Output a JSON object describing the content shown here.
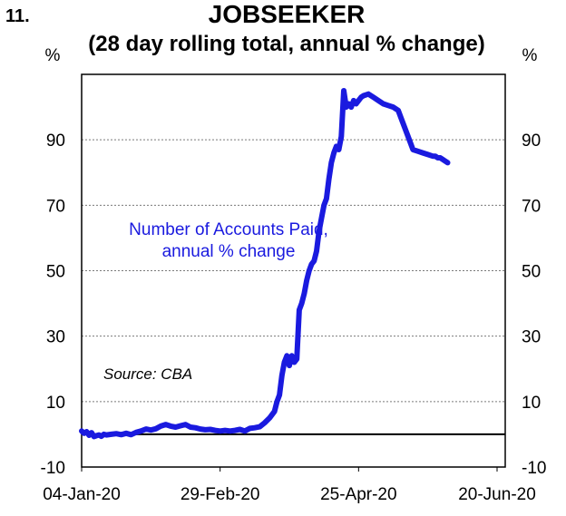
{
  "chart_data": {
    "type": "line",
    "figure_number": "11.",
    "title": "JOBSEEKER",
    "subtitle": "(28 day rolling total, annual % change)",
    "ylabel_left": "%",
    "ylabel_right": "%",
    "xlim": [
      "2020-01-04",
      "2020-06-20"
    ],
    "ylim": [
      -10,
      110
    ],
    "y_ticks": [
      -10,
      10,
      30,
      50,
      70,
      90
    ],
    "y_tick_labels": [
      "-10",
      "10",
      "30",
      "50",
      "70",
      "90"
    ],
    "x_ticks": [
      "2020-01-04",
      "2020-02-29",
      "2020-04-25",
      "2020-06-20"
    ],
    "x_tick_labels": [
      "04-Jan-20",
      "29-Feb-20",
      "25-Apr-20",
      "20-Jun-20"
    ],
    "gridlines": true,
    "zero_line": true,
    "annotation": "Source: CBA",
    "series": [
      {
        "name": "Number of Accounts Paid, annual % change",
        "label_lines": [
          "Number of Accounts Paid,",
          "annual % change"
        ],
        "color": "#1a1adf",
        "x_days": [
          0,
          1,
          2,
          3,
          4,
          5,
          6,
          7,
          8,
          9,
          10,
          12,
          14,
          16,
          18,
          20,
          22,
          24,
          26,
          28,
          30,
          32,
          34,
          36,
          38,
          40,
          42,
          44,
          46,
          48,
          50,
          52,
          54,
          56,
          58,
          60,
          62,
          64,
          66,
          68,
          70,
          72,
          74,
          76,
          78,
          79,
          80,
          81,
          82,
          83,
          84,
          85,
          86,
          87,
          88,
          89,
          90,
          91,
          92,
          93,
          94,
          95,
          96,
          97,
          98,
          99,
          100,
          101,
          102,
          103,
          104,
          105,
          106,
          107,
          108,
          109,
          110,
          111,
          112,
          113,
          114,
          116,
          118,
          120,
          122,
          124,
          126,
          128,
          130,
          132,
          134,
          136,
          138,
          140,
          142,
          143,
          144,
          145,
          146,
          147,
          148
        ],
        "values": [
          1.0,
          0.3,
          0.8,
          -0.3,
          0.5,
          -0.7,
          -0.4,
          -0.2,
          -0.6,
          0.0,
          -0.2,
          0.0,
          0.2,
          -0.1,
          0.3,
          -0.1,
          0.6,
          1.0,
          1.6,
          1.3,
          1.7,
          2.5,
          3.0,
          2.5,
          2.2,
          2.6,
          3.0,
          2.2,
          2.0,
          1.6,
          1.4,
          1.5,
          1.2,
          1.0,
          1.2,
          1.0,
          1.2,
          1.5,
          1.0,
          1.8,
          2.0,
          2.3,
          3.5,
          5.0,
          7.0,
          10.0,
          12.0,
          18.0,
          22.0,
          24.0,
          21.0,
          24.0,
          22.0,
          23.0,
          38.0,
          40.0,
          43.0,
          47.0,
          50.0,
          52.0,
          53.0,
          56.0,
          62.0,
          66.0,
          70.0,
          72.0,
          78.0,
          83.0,
          86.0,
          88.0,
          87.0,
          91.0,
          105.0,
          100.0,
          101.0,
          100.0,
          102.0,
          101.0,
          102.0,
          103.0,
          103.5,
          104.0,
          103.0,
          102.0,
          101.0,
          100.5,
          100.0,
          99.0,
          95.0,
          91.0,
          87.0,
          86.5,
          86.0,
          85.5,
          85.0,
          85.0,
          84.5,
          84.5,
          84.0,
          83.5,
          83.0
        ]
      }
    ]
  }
}
